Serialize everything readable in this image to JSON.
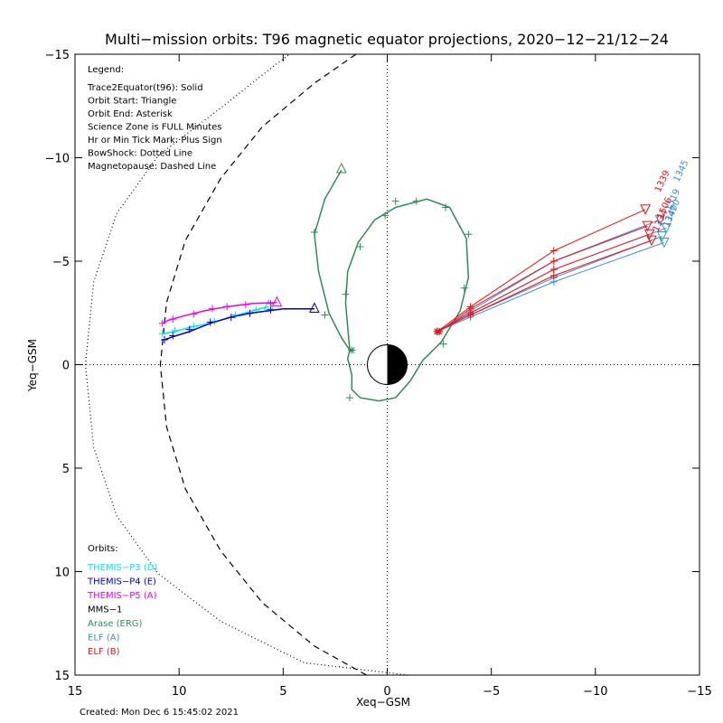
{
  "chart_data": {
    "type": "line",
    "title": "Multi−mission orbits: T96 magnetic equator projections, 2020−12−21/12−24",
    "xlabel": "Xeq−GSM",
    "ylabel": "Yeq−GSM",
    "xlim": [
      15,
      -15
    ],
    "ylim": [
      -15,
      15
    ],
    "x_ticks": [
      {
        "v": 15,
        "label": "15"
      },
      {
        "v": 10,
        "label": "10"
      },
      {
        "v": 5,
        "label": "5"
      },
      {
        "v": 0,
        "label": "0"
      },
      {
        "v": -5,
        "label": "−5"
      },
      {
        "v": -10,
        "label": "−10"
      },
      {
        "v": -15,
        "label": "−15"
      }
    ],
    "y_ticks": [
      {
        "v": -15,
        "label": "−15"
      },
      {
        "v": -10,
        "label": "−10"
      },
      {
        "v": -5,
        "label": "−5"
      },
      {
        "v": 0,
        "label": "0"
      },
      {
        "v": 5,
        "label": "5"
      },
      {
        "v": 10,
        "label": "10"
      },
      {
        "v": 15,
        "label": "15"
      }
    ],
    "legend": {
      "title": "Legend:",
      "lines": [
        "Trace2Equator(t96): Solid",
        "Orbit Start: Triangle",
        "Orbit End: Asterisk",
        "Science Zone is FULL Minutes",
        "Hr or Min Tick Mark: Plus Sign",
        "BowShock: Dotted Line",
        "Magnetopause: Dashed Line"
      ]
    },
    "orbits_title": "Orbits:",
    "orbit_legend": [
      {
        "label": "THEMIS−P3 (D)",
        "color": "#00e5ee"
      },
      {
        "label": "THEMIS−P4 (E)",
        "color": "#0000cc"
      },
      {
        "label": "THEMIS−P5 (A)",
        "color": "#ee00ee"
      },
      {
        "label": "MMS−1",
        "color": "#000000"
      },
      {
        "label": "Arase (ERG)",
        "color": "#2e8b57"
      },
      {
        "label": "ELF (A)",
        "color": "#3a8ee0"
      },
      {
        "label": "ELF (B)",
        "color": "#ee1111"
      }
    ],
    "created": "Created: Mon Dec  6 15:45:02 2021",
    "boundaries": {
      "bowshock": [
        [
          -1,
          15
        ],
        [
          4,
          14.4
        ],
        [
          8,
          12.4
        ],
        [
          11,
          10.1
        ],
        [
          13,
          7.3
        ],
        [
          14.1,
          4
        ],
        [
          14.5,
          0
        ],
        [
          14.1,
          -4
        ],
        [
          13,
          -7.3
        ],
        [
          11,
          -10.1
        ],
        [
          8,
          -12.4
        ],
        [
          6,
          -14
        ],
        [
          4.7,
          -15
        ]
      ],
      "magnetopause": [
        [
          1,
          15
        ],
        [
          3.5,
          13.6
        ],
        [
          6,
          11.5
        ],
        [
          8,
          9
        ],
        [
          9.7,
          6
        ],
        [
          10.6,
          3
        ],
        [
          10.9,
          0
        ],
        [
          10.6,
          -3
        ],
        [
          9.7,
          -6
        ],
        [
          8,
          -9
        ],
        [
          6,
          -11.5
        ],
        [
          3.5,
          -13.6
        ],
        [
          1.5,
          -15
        ]
      ]
    },
    "series": [
      {
        "name": "THEMIS−P3 (D)",
        "color": "#00e5ee",
        "points": [
          [
            5.7,
            -2.8
          ],
          [
            6.5,
            -2.6
          ],
          [
            7.5,
            -2.3
          ],
          [
            8.5,
            -2.0
          ],
          [
            9.5,
            -1.8
          ],
          [
            10.2,
            -1.6
          ],
          [
            10.8,
            -1.5
          ]
        ],
        "ticks": [
          [
            6.3,
            -2.65
          ],
          [
            7.3,
            -2.4
          ],
          [
            8.3,
            -2.1
          ],
          [
            9.3,
            -1.85
          ],
          [
            10.2,
            -1.65
          ],
          [
            10.8,
            -1.5
          ]
        ],
        "start": [
          5.7,
          -2.9
        ]
      },
      {
        "name": "THEMIS−P4 (E)",
        "color": "#0000cc",
        "points": [
          [
            3.5,
            -2.7
          ],
          [
            5,
            -2.7
          ],
          [
            6.5,
            -2.5
          ],
          [
            7.5,
            -2.3
          ],
          [
            8.5,
            -2.0
          ],
          [
            9.5,
            -1.6
          ],
          [
            10.3,
            -1.35
          ],
          [
            10.7,
            -1.2
          ]
        ],
        "ticks": [
          [
            5.6,
            -2.65
          ],
          [
            6.6,
            -2.48
          ],
          [
            7.5,
            -2.28
          ],
          [
            8.5,
            -2.05
          ],
          [
            9.5,
            -1.7
          ],
          [
            10.3,
            -1.4
          ],
          [
            10.7,
            -1.2
          ]
        ],
        "start": [
          3.5,
          -2.75
        ]
      },
      {
        "name": "THEMIS−P5 (A)",
        "color": "#ee00ee",
        "points": [
          [
            5.3,
            -3.0
          ],
          [
            6.5,
            -2.95
          ],
          [
            7.7,
            -2.8
          ],
          [
            8.8,
            -2.6
          ],
          [
            9.8,
            -2.35
          ],
          [
            10.5,
            -2.15
          ],
          [
            10.8,
            -2.0
          ]
        ],
        "ticks": [
          [
            5.6,
            -2.95
          ],
          [
            6.8,
            -2.9
          ],
          [
            7.7,
            -2.8
          ],
          [
            8.4,
            -2.7
          ],
          [
            9.3,
            -2.45
          ],
          [
            10.3,
            -2.2
          ],
          [
            10.8,
            -2.0
          ]
        ],
        "start": [
          5.3,
          -3.05
        ]
      },
      {
        "name": "Arase (ERG)",
        "color": "#2e8b57",
        "points": [
          [
            2.2,
            -9.4
          ],
          [
            3.0,
            -8.0
          ],
          [
            3.5,
            -6.3
          ],
          [
            3.3,
            -4.5
          ],
          [
            2.8,
            -2.5
          ],
          [
            2.2,
            -1.3
          ],
          [
            1.8,
            -0.7
          ],
          [
            1.9,
            -0.3
          ],
          [
            1.7,
            0.5
          ],
          [
            1.7,
            1.2
          ],
          [
            1.3,
            1.6
          ],
          [
            0.4,
            1.75
          ],
          [
            -0.4,
            1.6
          ],
          [
            -1.1,
            0.8
          ],
          [
            -1.7,
            -0.2
          ],
          [
            -2.6,
            -1.1
          ],
          [
            -3.5,
            -2.6
          ],
          [
            -3.9,
            -4.2
          ],
          [
            -3.8,
            -6.1
          ],
          [
            -3.0,
            -7.6
          ],
          [
            -1.9,
            -8.0
          ],
          [
            -0.4,
            -7.6
          ],
          [
            0.6,
            -7.0
          ],
          [
            1.4,
            -5.9
          ],
          [
            1.9,
            -4.5
          ],
          [
            2.0,
            -3.0
          ],
          [
            1.8,
            -0.7
          ]
        ],
        "ticks": [
          [
            3.5,
            -6.4
          ],
          [
            3.0,
            -2.4
          ],
          [
            1.8,
            1.6
          ],
          [
            -0.4,
            -7.9
          ],
          [
            0.1,
            -7.2
          ],
          [
            1.3,
            -5.7
          ],
          [
            2.0,
            -3.4
          ],
          [
            -2.7,
            -1.0
          ],
          [
            -3.7,
            -3.7
          ],
          [
            -3.9,
            -6.3
          ],
          [
            -2.8,
            -7.6
          ],
          [
            -1.4,
            -7.9
          ]
        ],
        "start": [
          2.2,
          -9.5
        ],
        "end": [
          1.7,
          -0.7
        ]
      },
      {
        "name": "ELF (A)",
        "color": "#3a8ee0",
        "tracks": [
          [
            [
              -2.4,
              -1.6
            ],
            [
              -4,
              -2.4
            ],
            [
              -8,
              -4.2
            ],
            [
              -13.2,
              -6.2
            ]
          ],
          [
            [
              -2.4,
              -1.6
            ],
            [
              -4,
              -2.5
            ],
            [
              -8,
              -4.6
            ],
            [
              -13.4,
              -6.6
            ]
          ],
          [
            [
              -2.5,
              -1.6
            ],
            [
              -4,
              -2.6
            ],
            [
              -8,
              -5.0
            ],
            [
              -13.1,
              -7.0
            ]
          ],
          [
            [
              -2.4,
              -1.6
            ],
            [
              -4,
              -2.3
            ],
            [
              -8,
              -4.0
            ],
            [
              -13.3,
              -5.9
            ]
          ]
        ],
        "labels": [
          {
            "text": "1519",
            "at": [
              -13.6,
              -7.4
            ]
          },
          {
            "text": "1345",
            "at": [
              -14.0,
              -8.8
            ]
          },
          {
            "text": "1400",
            "at": [
              -13.6,
              -6.9
            ]
          },
          {
            "text": "1347",
            "at": [
              -13.5,
              -6.6
            ]
          }
        ]
      },
      {
        "name": "ELF (B)",
        "color": "#ee1111",
        "tracks": [
          [
            [
              -2.4,
              -1.6
            ],
            [
              -4,
              -2.4
            ],
            [
              -8,
              -4.3
            ],
            [
              -12.7,
              -6.0
            ]
          ],
          [
            [
              -2.5,
              -1.6
            ],
            [
              -4,
              -2.7
            ],
            [
              -8,
              -5.0
            ],
            [
              -12.5,
              -6.7
            ]
          ],
          [
            [
              -2.4,
              -1.6
            ],
            [
              -4,
              -2.8
            ],
            [
              -8,
              -5.5
            ],
            [
              -12.4,
              -7.5
            ]
          ],
          [
            [
              -2.4,
              -1.6
            ],
            [
              -4,
              -2.5
            ],
            [
              -8,
              -4.6
            ],
            [
              -12.6,
              -6.3
            ]
          ]
        ],
        "labels": [
          {
            "text": "1339",
            "at": [
              -13.1,
              -8.3
            ]
          },
          {
            "text": "1506",
            "at": [
              -13.2,
              -7.0
            ]
          },
          {
            "text": "1334",
            "at": [
              -13.0,
              -6.4
            ]
          }
        ]
      }
    ]
  }
}
